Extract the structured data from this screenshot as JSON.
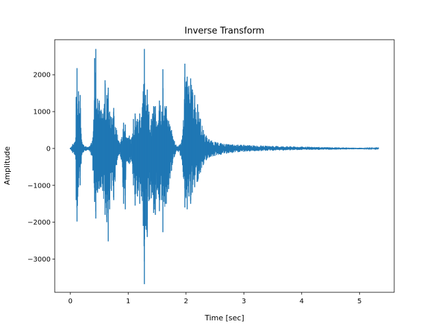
{
  "chart_data": {
    "type": "line",
    "title": "Inverse Transform",
    "xlabel": "Time [sec]",
    "ylabel": "Amplitude",
    "xlim": [
      -0.27,
      5.6
    ],
    "ylim": [
      -3900,
      2950
    ],
    "xticks": [
      0,
      1,
      2,
      3,
      4,
      5
    ],
    "yticks": [
      -3000,
      -2000,
      -1000,
      0,
      1000,
      2000
    ],
    "grid": false,
    "series": [
      {
        "color": "#1f77b4",
        "envelope": {
          "x": [
            0.0,
            0.04,
            0.08,
            0.095,
            0.1,
            0.115,
            0.14,
            0.17,
            0.2,
            0.23,
            0.27,
            0.3,
            0.33,
            0.36,
            0.39,
            0.42,
            0.44,
            0.47,
            0.5,
            0.53,
            0.56,
            0.6,
            0.63,
            0.655,
            0.68,
            0.71,
            0.75,
            0.8,
            0.85,
            0.88,
            0.92,
            0.95,
            0.98,
            1.02,
            1.06,
            1.09,
            1.12,
            1.16,
            1.2,
            1.23,
            1.26,
            1.28,
            1.3,
            1.33,
            1.36,
            1.4,
            1.44,
            1.47,
            1.5,
            1.54,
            1.58,
            1.6,
            1.64,
            1.66,
            1.7,
            1.75,
            1.8,
            1.85,
            1.9,
            1.94,
            1.98,
            2.02,
            2.05,
            2.08,
            2.11,
            2.15,
            2.2,
            2.25,
            2.3,
            2.35,
            2.4,
            2.5,
            2.6,
            2.7,
            2.8,
            2.9,
            3.0,
            3.1,
            3.3,
            3.5,
            3.8,
            4.0,
            4.3,
            4.6,
            5.0,
            5.33
          ],
          "upper": [
            20,
            120,
            180,
            300,
            1400,
            2180,
            1550,
            1450,
            180,
            90,
            60,
            40,
            60,
            150,
            300,
            2450,
            2700,
            1350,
            1300,
            1050,
            950,
            1850,
            1450,
            1650,
            1000,
            850,
            1100,
            500,
            160,
            250,
            700,
            650,
            280,
            350,
            300,
            800,
            950,
            800,
            950,
            850,
            1550,
            2700,
            1450,
            1600,
            1000,
            800,
            1150,
            1150,
            600,
            1300,
            1000,
            2150,
            1100,
            1150,
            750,
            500,
            200,
            60,
            120,
            350,
            2300,
            1950,
            1700,
            1900,
            1600,
            1450,
            1200,
            800,
            500,
            350,
            250,
            180,
            150,
            120,
            110,
            100,
            100,
            90,
            80,
            70,
            60,
            50,
            40,
            30,
            20,
            10
          ],
          "lower": [
            -20,
            -120,
            -180,
            -300,
            -1400,
            -1980,
            -1050,
            -1000,
            -160,
            -90,
            -60,
            -40,
            -60,
            -180,
            -600,
            -1450,
            -1900,
            -1200,
            -1100,
            -1050,
            -1150,
            -1800,
            -2000,
            -2520,
            -1650,
            -1150,
            -1400,
            -450,
            -150,
            -300,
            -1500,
            -1650,
            -350,
            -420,
            -350,
            -1000,
            -1550,
            -1300,
            -1500,
            -1300,
            -2100,
            -3680,
            -2100,
            -2400,
            -1400,
            -1350,
            -1750,
            -1800,
            -1100,
            -1700,
            -1400,
            -2270,
            -1500,
            -1500,
            -1100,
            -600,
            -220,
            -60,
            -180,
            -450,
            -1600,
            -1650,
            -1300,
            -1500,
            -1200,
            -1050,
            -900,
            -650,
            -450,
            -320,
            -250,
            -200,
            -170,
            -140,
            -120,
            -100,
            -90,
            -80,
            -70,
            -60,
            -50,
            -40,
            -35,
            -30,
            -20,
            -10
          ]
        }
      }
    ]
  }
}
